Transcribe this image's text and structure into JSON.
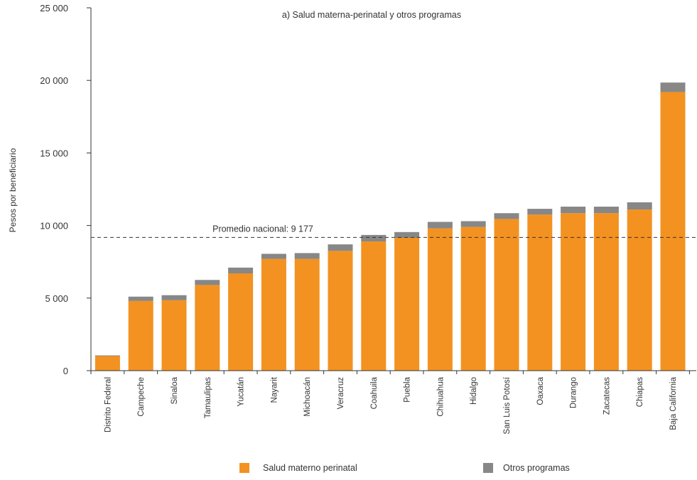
{
  "chart_data": {
    "type": "bar",
    "stacked": true,
    "title": "a) Salud materna-perinatal y otros programas",
    "ylabel": "Pesos por beneficiario",
    "xlabel": "",
    "ylim": [
      0,
      25000
    ],
    "yticks": [
      0,
      5000,
      10000,
      15000,
      20000,
      25000
    ],
    "ytick_labels": [
      "0",
      "5 000",
      "10 000",
      "15 000",
      "20 000",
      "25 000"
    ],
    "grid": false,
    "legend_position": "bottom",
    "categories": [
      "Distrito Federal",
      "Campeche",
      "Sinaloa",
      "Tamaulipas",
      "Yucatán",
      "Nayarit",
      "Michoacán",
      "Veracruz",
      "Coahuila",
      "Puebla",
      "Chihuahua",
      "Hidalgo",
      "San Luis Potosí",
      "Oaxaca",
      "Durango",
      "Zacatecas",
      "Chiapas",
      "Baja California"
    ],
    "series": [
      {
        "name": "Salud materno perinatal",
        "color": "#f39220",
        "values": [
          1000,
          4800,
          4850,
          5900,
          6700,
          7700,
          7700,
          8250,
          8900,
          9150,
          9800,
          9900,
          10450,
          10750,
          10850,
          10850,
          11100,
          19200
        ]
      },
      {
        "name": "Otros programas",
        "color": "#878787",
        "values": [
          50,
          300,
          350,
          350,
          400,
          350,
          400,
          450,
          450,
          400,
          450,
          400,
          400,
          400,
          450,
          450,
          500,
          650
        ]
      }
    ],
    "reference_line": {
      "label": "Promedio nacional: 9 177",
      "value": 9177,
      "style": "dashed"
    }
  }
}
